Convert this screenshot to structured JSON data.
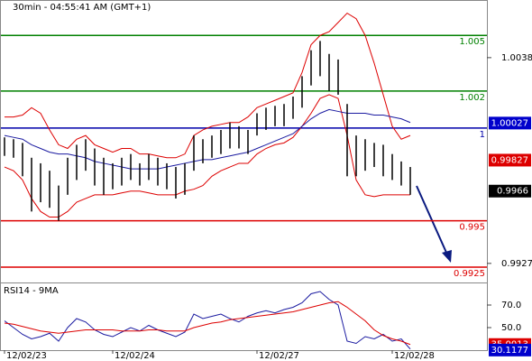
{
  "chart_data": [
    {
      "type": "hilo",
      "title": "30min - 04:55:41 AM (GMT+1)",
      "categories": [
        "12/02/23",
        null,
        null,
        null,
        null,
        null,
        null,
        null,
        null,
        null,
        null,
        null,
        "12/02/24",
        null,
        null,
        null,
        null,
        null,
        null,
        null,
        null,
        null,
        null,
        null,
        null,
        null,
        null,
        null,
        "12/02/27",
        null,
        null,
        null,
        null,
        null,
        null,
        null,
        null,
        null,
        null,
        null,
        null,
        null,
        null,
        "12/02/28",
        null,
        null
      ],
      "high": [
        0.9995,
        0.9994,
        0.9992,
        0.9984,
        0.9981,
        0.9977,
        0.9969,
        0.9984,
        0.9991,
        0.9994,
        0.9989,
        0.9984,
        0.9981,
        0.9984,
        0.9986,
        0.9981,
        0.9986,
        0.9984,
        0.9981,
        0.9979,
        0.9981,
        0.9996,
        0.9994,
        0.9996,
        0.9999,
        1.0003,
        1.0001,
        0.9999,
        1.0008,
        1.0011,
        1.0012,
        1.0013,
        1.0017,
        1.0028,
        1.0042,
        1.0047,
        1.004,
        1.0037,
        1.0013,
        0.9996,
        0.9994,
        0.9992,
        0.9991,
        0.9986,
        0.9982,
        0.9979
      ],
      "low": [
        0.9985,
        0.9984,
        0.9974,
        0.9955,
        0.996,
        0.9957,
        0.995,
        0.9964,
        0.9972,
        0.9977,
        0.9969,
        0.9964,
        0.9967,
        0.9969,
        0.9972,
        0.9969,
        0.9972,
        0.9969,
        0.9967,
        0.9962,
        0.9964,
        0.9977,
        0.9981,
        0.9984,
        0.9986,
        0.9989,
        0.9989,
        0.9986,
        0.9996,
        0.9999,
        1.0001,
        1.0001,
        1.0005,
        1.0011,
        1.0023,
        1.0028,
        1.002,
        1.0018,
        0.9974,
        0.9974,
        0.9977,
        0.9979,
        0.9974,
        0.9972,
        0.9969,
        0.9964
      ],
      "bar_color": "#000000",
      "series": [
        {
          "color": "#dd0000",
          "values": [
            1.0006,
            1.0006,
            1.0007,
            1.0011,
            1.0008,
            0.9999,
            0.9991,
            0.9989,
            0.9994,
            0.9996,
            0.9991,
            0.9989,
            0.9987,
            0.9989,
            0.9989,
            0.9986,
            0.9986,
            0.9985,
            0.9984,
            0.9984,
            0.9986,
            0.9996,
            0.9999,
            1.0001,
            1.0002,
            1.0003,
            1.0003,
            1.0006,
            1.0011,
            1.0013,
            1.0015,
            1.0017,
            1.0019,
            1.003,
            1.0045,
            1.005,
            1.0052,
            1.0057,
            1.0062,
            1.0059,
            1.005,
            1.0035,
            1.0018,
            1.0001,
            0.9994,
            0.9996
          ]
        },
        {
          "color": "#dd0000",
          "values": [
            0.9979,
            0.9977,
            0.9972,
            0.9962,
            0.9955,
            0.9952,
            0.9952,
            0.9955,
            0.996,
            0.9962,
            0.9964,
            0.9964,
            0.9964,
            0.9965,
            0.9966,
            0.9966,
            0.9965,
            0.9964,
            0.9964,
            0.9964,
            0.9966,
            0.9967,
            0.9969,
            0.9974,
            0.9977,
            0.9979,
            0.9981,
            0.9981,
            0.9986,
            0.9989,
            0.9991,
            0.9992,
            0.9995,
            1.0001,
            1.0008,
            1.0016,
            1.0018,
            1.0016,
            0.9996,
            0.9972,
            0.9964,
            0.9963,
            0.9964,
            0.9964,
            0.9964,
            0.9964
          ]
        },
        {
          "color": "#1a1aa0",
          "values": [
            0.9996,
            0.9995,
            0.9994,
            0.9991,
            0.9989,
            0.9987,
            0.9986,
            0.9986,
            0.9985,
            0.9984,
            0.9982,
            0.9981,
            0.998,
            0.9979,
            0.9978,
            0.9978,
            0.9978,
            0.9978,
            0.9979,
            0.998,
            0.9981,
            0.9982,
            0.9983,
            0.9983,
            0.9984,
            0.9985,
            0.9986,
            0.9987,
            0.9989,
            0.9991,
            0.9993,
            0.9995,
            0.9997,
            1.0001,
            1.0005,
            1.0008,
            1.001,
            1.0009,
            1.0008,
            1.0008,
            1.0008,
            1.0007,
            1.0007,
            1.0006,
            1.0005,
            1.0003
          ]
        }
      ],
      "levels": [
        {
          "value": 1.005,
          "color": "#008000"
        },
        {
          "value": 1.002,
          "color": "#008000"
        },
        {
          "value": 1,
          "color": "#0000aa"
        },
        {
          "value": 0.995,
          "color": "#dd0000"
        },
        {
          "value": 0.9925,
          "color": "#dd0000"
        }
      ],
      "markers": [
        {
          "value": 1.00027,
          "color": "#0000cc"
        },
        {
          "value": 0.99827,
          "color": "#dd0000"
        },
        {
          "value": 0.9966,
          "color": "#000000"
        }
      ],
      "ylim": [
        0.99167,
        1.00691
      ],
      "yticks": [
        1.0038,
        0.9927
      ]
    },
    {
      "type": "line",
      "title": "RSI14 - 9MA",
      "series": [
        {
          "color": "#1a1aa0",
          "values": [
            56,
            50,
            44,
            40,
            42,
            45,
            38,
            50,
            58,
            55,
            48,
            44,
            42,
            46,
            50,
            47,
            52,
            48,
            45,
            42,
            46,
            62,
            58,
            60,
            62,
            58,
            55,
            60,
            63,
            65,
            63,
            66,
            68,
            72,
            80,
            82,
            75,
            70,
            38,
            36,
            42,
            40,
            44,
            38,
            40,
            31
          ]
        },
        {
          "color": "#dd0000",
          "values": [
            54,
            53,
            51,
            49,
            47,
            46,
            45,
            46,
            47,
            48,
            48,
            48,
            48,
            47,
            47,
            47,
            48,
            48,
            47,
            47,
            47,
            50,
            52,
            54,
            55,
            57,
            58,
            59,
            60,
            61,
            62,
            63,
            64,
            66,
            68,
            70,
            72,
            73,
            68,
            62,
            56,
            48,
            43,
            40,
            38,
            35
          ]
        }
      ],
      "markers": [
        {
          "value": 35.0013,
          "color": "#dd0000"
        },
        {
          "value": 30.1177,
          "color": "#0000cc"
        }
      ],
      "ylim": [
        30,
        90
      ],
      "yticks": [
        {
          "value": 70,
          "label": "70.0"
        },
        {
          "value": 50,
          "label": "50.0"
        }
      ]
    }
  ]
}
